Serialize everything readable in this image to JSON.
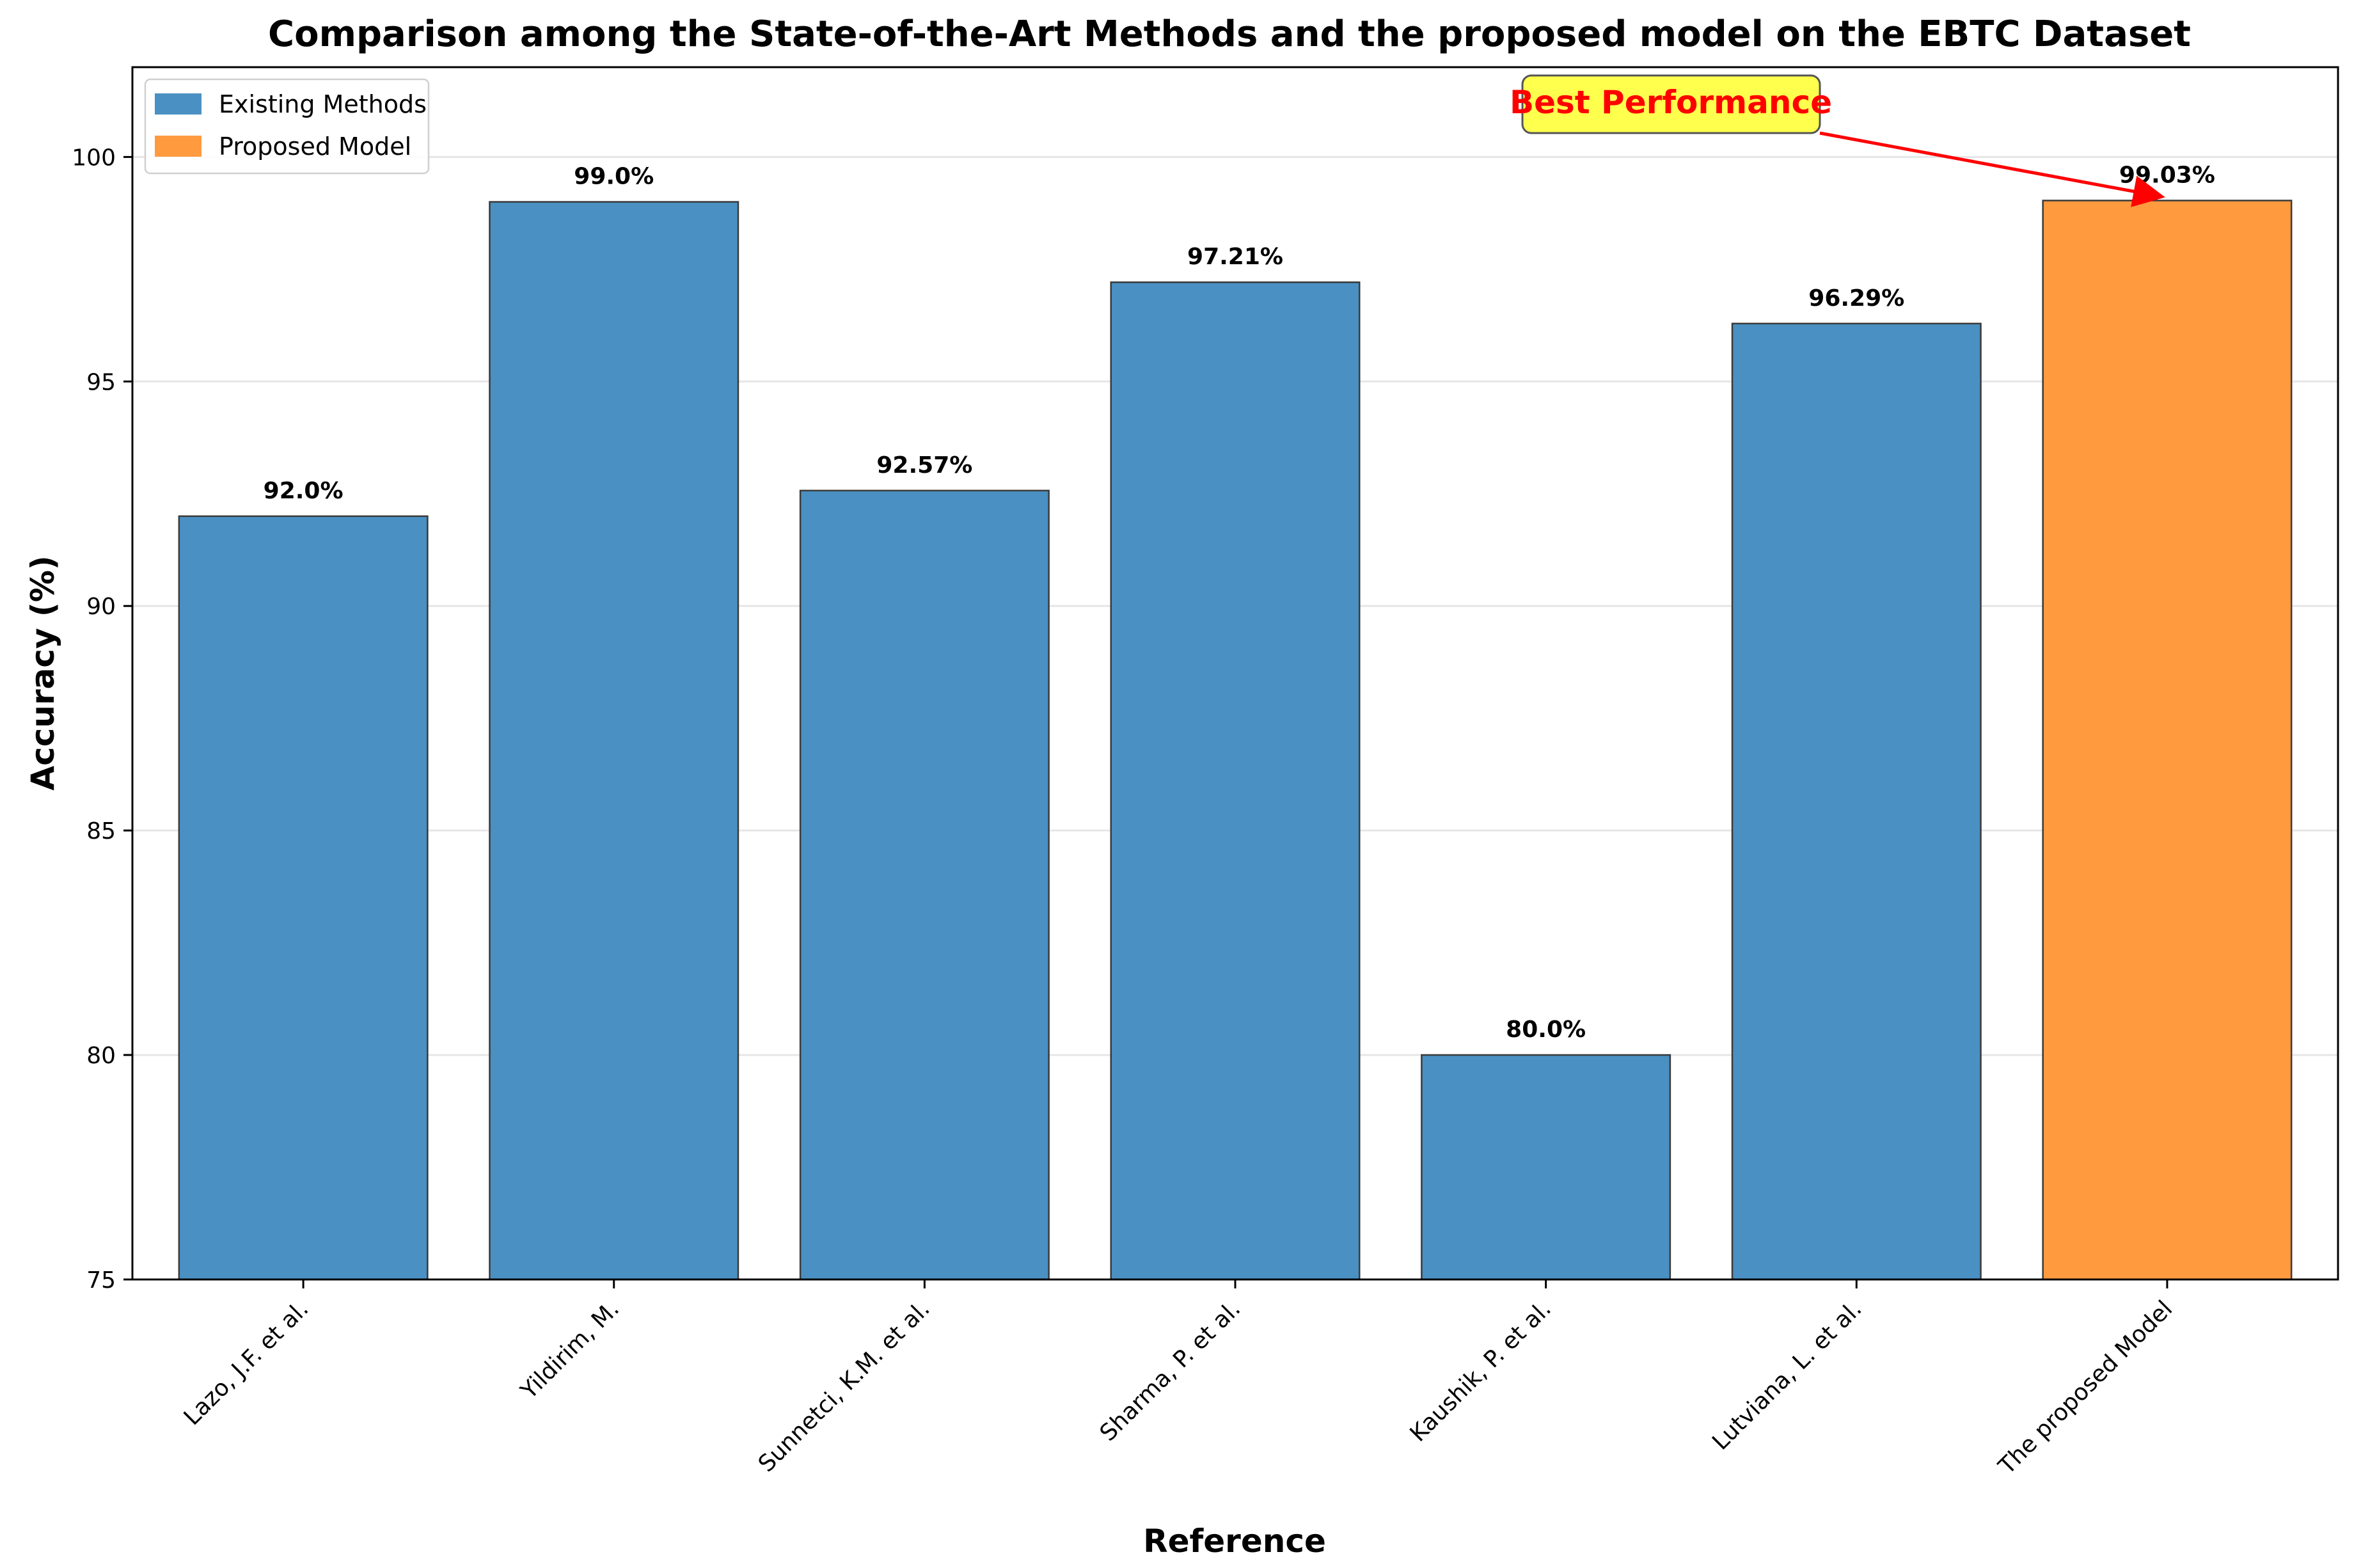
{
  "chart_data": {
    "type": "bar",
    "title": "Comparison among the State-of-the-Art Methods and the proposed model on the EBTC Dataset",
    "xlabel": "Reference",
    "ylabel": "Accuracy (%)",
    "ylim": [
      75,
      102
    ],
    "yticks": [
      75,
      80,
      85,
      90,
      95,
      100
    ],
    "grid": "horizontal",
    "legend_position": "top-left",
    "categories": [
      "Lazo, J.F. et al.",
      "Yildirim, M.",
      "Sunnetci, K.M. et al.",
      "Sharma, P. et al.",
      "Kaushik, P. et al.",
      "Lutviana, L. et al.",
      "The proposed Model"
    ],
    "values": [
      92.0,
      99.0,
      92.57,
      97.21,
      80.0,
      96.29,
      99.03
    ],
    "value_labels": [
      "92.0%",
      "99.0%",
      "92.57%",
      "97.21%",
      "80.0%",
      "96.29%",
      "99.03%"
    ],
    "groups": [
      "existing",
      "existing",
      "existing",
      "existing",
      "existing",
      "existing",
      "proposed"
    ],
    "legend": [
      {
        "key": "existing",
        "label": "Existing Methods",
        "color": "#4a90c2"
      },
      {
        "key": "proposed",
        "label": "Proposed Model",
        "color": "#ff9a3f"
      }
    ],
    "annotation": {
      "text": "Best Performance",
      "target_index": 6,
      "text_color": "#ff0000",
      "box_color": "#ffff4d",
      "arrow_color": "#ff0000"
    }
  }
}
